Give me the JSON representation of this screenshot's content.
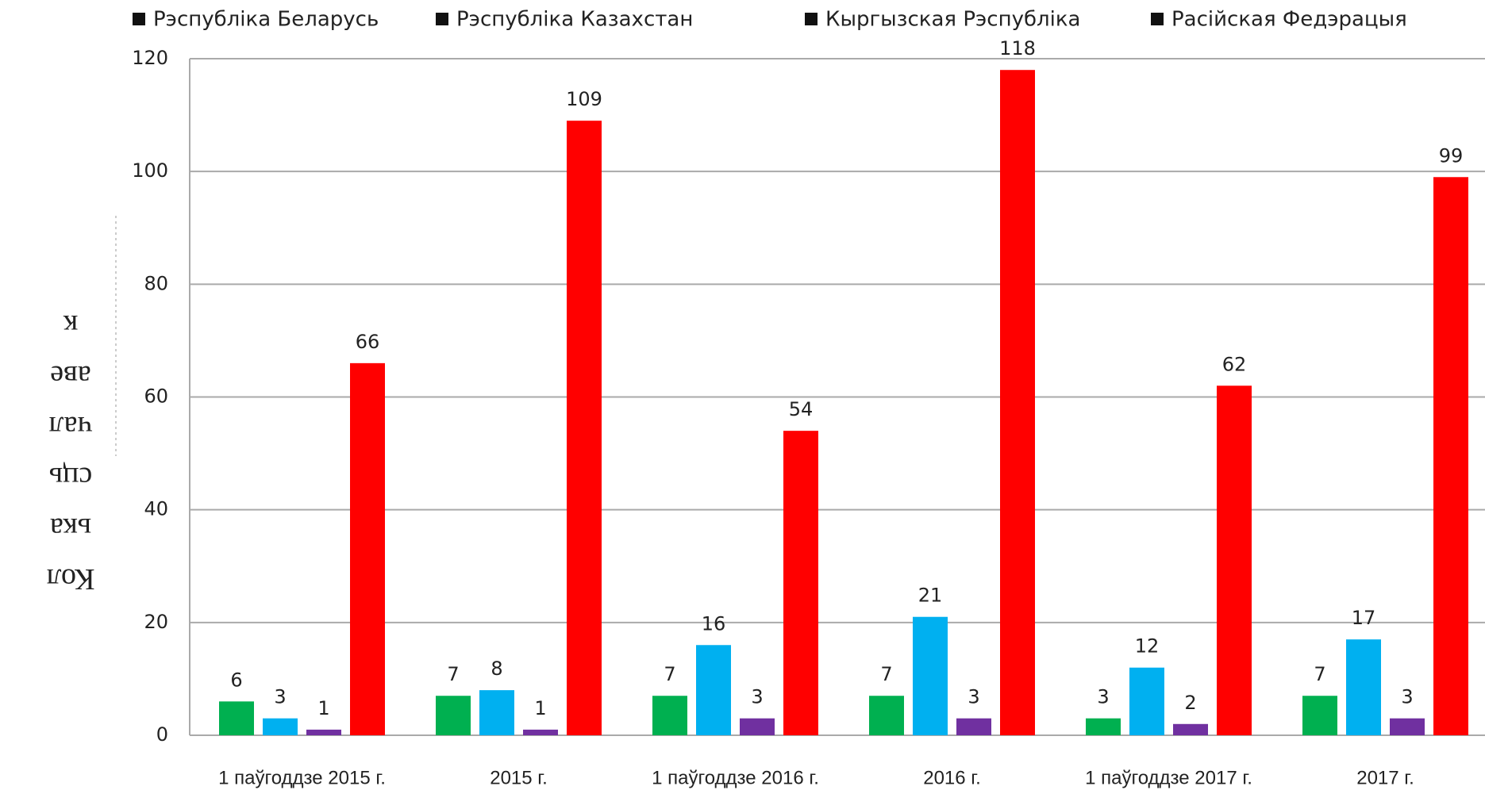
{
  "chart_data": {
    "type": "bar",
    "y_label": "Колькасць чалавек",
    "categories": [
      "1 паўгоддзе 2015 г.",
      "2015 г.",
      "1 паўгоддзе 2016 г.",
      "2016 г.",
      "1 паўгоддзе 2017 г.",
      "2017 г."
    ],
    "series": [
      {
        "name": "Рэспубліка Беларусь",
        "color": "#00b050",
        "values": [
          6,
          7,
          7,
          7,
          3,
          7
        ]
      },
      {
        "name": "Рэспубліка Казахстан",
        "color": "#00b0f0",
        "values": [
          3,
          8,
          16,
          21,
          12,
          17
        ]
      },
      {
        "name": "Кыргызская Рэспубліка",
        "color": "#7030a0",
        "values": [
          1,
          1,
          3,
          3,
          2,
          3
        ]
      },
      {
        "name": "Расійская Федэрацыя",
        "color": "#ff0000",
        "values": [
          66,
          109,
          54,
          118,
          62,
          99
        ]
      }
    ],
    "ylim": [
      0,
      120
    ],
    "yticks": [
      0,
      20,
      40,
      60,
      80,
      100,
      120
    ],
    "grid": true,
    "legend": "top"
  }
}
